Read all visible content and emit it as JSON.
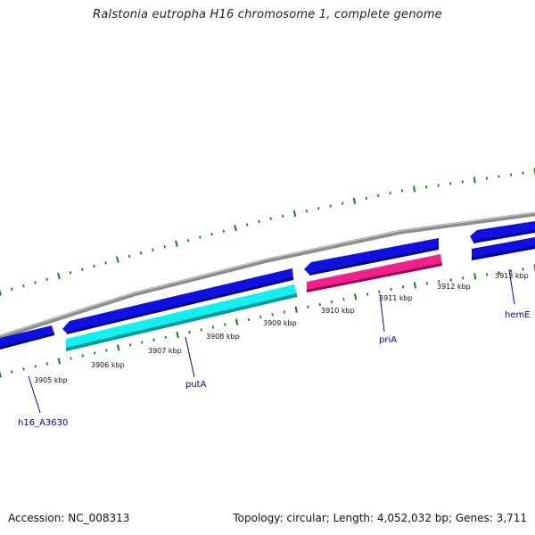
{
  "title": "Ralstonia eutropha H16 chromosome 1, complete genome",
  "footer": {
    "accession": "Accession: NC_008313",
    "stats": "Topology: circular; Length: 4,052,032 bp; Genes: 3,711"
  },
  "colors": {
    "backbone": "#8c8c8c",
    "tick": "#1e7a1e",
    "gene_blue": "#1010e0",
    "gene_cyan": "#14f0f0",
    "gene_pink": "#f0208c",
    "leader": "#0000aa"
  },
  "ticks": [
    {
      "label": "3905 kbp"
    },
    {
      "label": "3906 kbp"
    },
    {
      "label": "3907 kbp"
    },
    {
      "label": "3908 kbp"
    },
    {
      "label": "3909 kbp"
    },
    {
      "label": "3910 kbp"
    },
    {
      "label": "3911 kbp"
    },
    {
      "label": "3912 kbp"
    },
    {
      "label": "3913 kbp"
    }
  ],
  "genes": [
    {
      "label": "h16_A3630"
    },
    {
      "label": "putA"
    },
    {
      "label": "priA"
    },
    {
      "label": "hemE"
    }
  ]
}
